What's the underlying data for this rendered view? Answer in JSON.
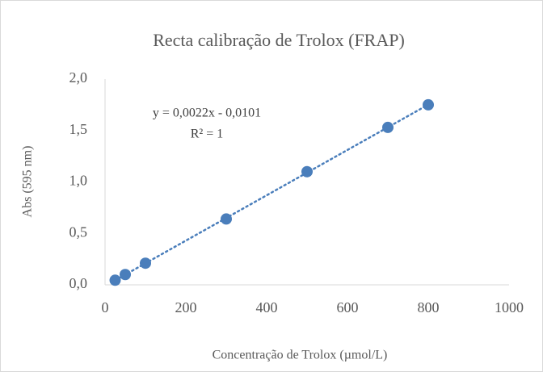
{
  "chart_data": {
    "type": "scatter",
    "title": "Recta calibração de Trolox (FRAP)",
    "x_label": "Concentração de Trolox (µmol/L)",
    "y_label": "Abs (595 nm)",
    "annotations": [
      "y = 0,0022x - 0,0101",
      "R² = 1"
    ],
    "series": [
      {
        "name": "Abs",
        "color": "#4a7ebb",
        "x": [
          25,
          50,
          100,
          300,
          500,
          700,
          800
        ],
        "values": [
          0.045,
          0.1,
          0.21,
          0.64,
          1.1,
          1.53,
          1.75
        ]
      }
    ],
    "trendline": true,
    "xlim": [
      0,
      1000
    ],
    "xticks": [
      0,
      200,
      400,
      600,
      800,
      1000
    ],
    "ylim": [
      0,
      2
    ],
    "yticks": [
      {
        "value": 0,
        "label": "0,0"
      },
      {
        "value": 0.5,
        "label": "0,5"
      },
      {
        "value": 1,
        "label": "1,0"
      },
      {
        "value": 1.5,
        "label": "1,5"
      },
      {
        "value": 2,
        "label": "2,0"
      }
    ],
    "grid": false
  }
}
